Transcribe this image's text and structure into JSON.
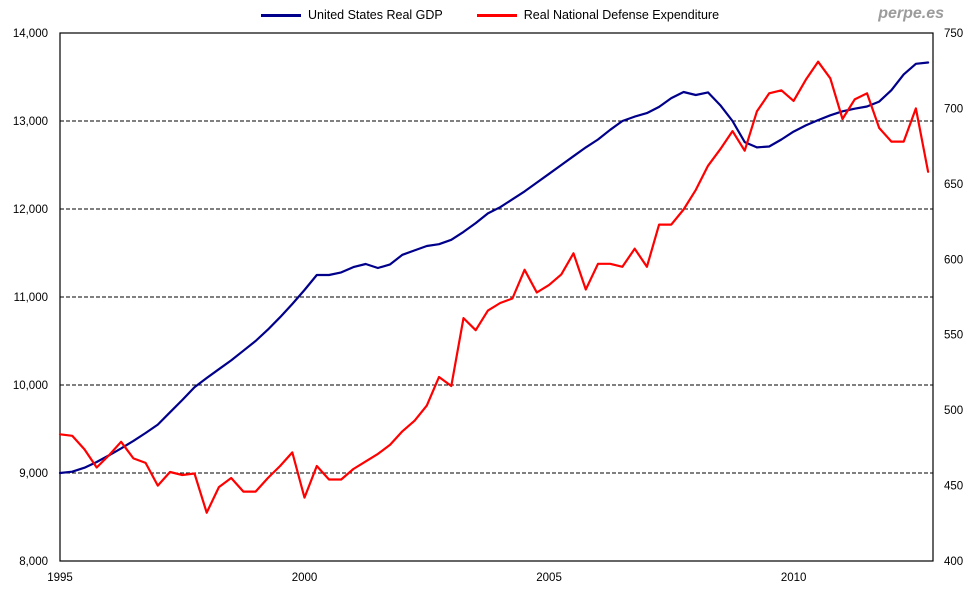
{
  "page": {
    "watermark": "perpe.es"
  },
  "colors": {
    "gdp_blue": "#00008B",
    "defense_red": "#FF0000",
    "grid_black": "#000000",
    "watermark_gray": "#9b9b9b"
  },
  "legend": {
    "items": [
      {
        "label": "United States Real GDP",
        "color": "#00008B"
      },
      {
        "label": "Real National Defense Expenditure",
        "color": "#FF0000"
      }
    ]
  },
  "chart_data": {
    "type": "line",
    "title": "",
    "frequency": "quarterly",
    "x_start_year": 1995,
    "x_step_years": 0.25,
    "x_axis": {
      "min": 1995,
      "max": 2012.85,
      "tick_years": [
        1995,
        2000,
        2005,
        2010
      ],
      "tick_labels": [
        "1995",
        "2000",
        "2005",
        "2010"
      ]
    },
    "y_left_axis": {
      "min": 8000,
      "max": 14000,
      "tick_values": [
        8000,
        9000,
        10000,
        11000,
        12000,
        13000,
        14000
      ],
      "tick_labels": [
        "8,000",
        "9,000",
        "10,000",
        "11,000",
        "12,000",
        "13,000",
        "14,000"
      ],
      "gridline_values": [
        9000,
        10000,
        11000,
        12000,
        13000
      ]
    },
    "y_right_axis": {
      "min": 400,
      "max": 750,
      "tick_values": [
        400,
        450,
        500,
        550,
        600,
        650,
        700,
        750
      ],
      "tick_labels": [
        "400",
        "450",
        "500",
        "550",
        "600",
        "650",
        "700",
        "750"
      ]
    },
    "grid": "horizontal-dashed",
    "legend_position": "top-center",
    "series": [
      {
        "name": "United States Real GDP",
        "axis": "left",
        "color": "#00008B",
        "values": [
          9000,
          9015,
          9060,
          9125,
          9200,
          9280,
          9365,
          9455,
          9550,
          9690,
          9830,
          9975,
          10080,
          10180,
          10280,
          10390,
          10500,
          10630,
          10770,
          10920,
          11080,
          11250,
          11250,
          11280,
          11340,
          11375,
          11330,
          11370,
          11480,
          11530,
          11580,
          11600,
          11650,
          11740,
          11840,
          11950,
          12020,
          12110,
          12200,
          12300,
          12400,
          12500,
          12600,
          12700,
          12790,
          12900,
          13000,
          13050,
          13090,
          13160,
          13260,
          13330,
          13295,
          13325,
          13180,
          13000,
          12760,
          12700,
          12710,
          12790,
          12880,
          12950,
          13010,
          13065,
          13110,
          13140,
          13165,
          13220,
          13350,
          13530,
          13650,
          13665
        ]
      },
      {
        "name": "Real National Defense Expenditure",
        "axis": "right",
        "color": "#FF0000",
        "values": [
          484,
          483,
          474,
          462,
          470,
          479,
          468,
          465,
          450,
          459,
          457,
          458,
          432,
          449,
          455,
          446,
          446,
          455,
          463,
          472,
          442,
          463,
          454,
          454,
          461,
          466,
          471,
          477,
          486,
          493,
          503,
          522,
          516,
          561,
          553,
          566,
          571,
          574,
          593,
          578,
          583,
          590,
          604,
          580,
          597,
          597,
          595,
          607,
          595,
          623,
          623,
          633,
          646,
          662,
          673,
          685,
          672,
          698,
          710,
          712,
          705,
          719,
          731,
          720,
          693,
          706,
          710,
          687,
          678,
          678,
          700,
          658
        ]
      }
    ]
  }
}
